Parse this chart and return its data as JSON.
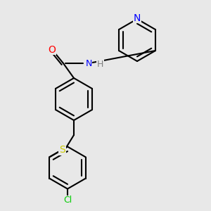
{
  "bg_color": "#e8e8e8",
  "bond_color": "#000000",
  "bond_width": 1.5,
  "atom_colors": {
    "N": "#0000ff",
    "O": "#ff0000",
    "S": "#cccc00",
    "Cl": "#00cc00",
    "H": "#808080",
    "C": "#000000"
  },
  "font_size": 9
}
